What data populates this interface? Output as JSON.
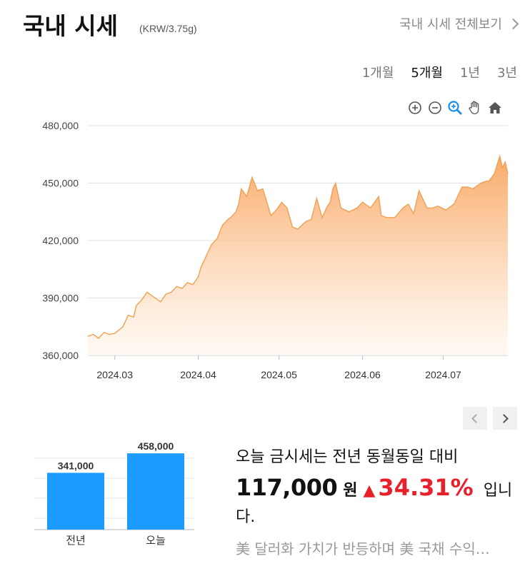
{
  "header": {
    "title": "국내 시세",
    "unit": "(KRW/3.75g)",
    "more_link": "국내 시세 전체보기"
  },
  "period_tabs": [
    {
      "label": "1개월",
      "active": false
    },
    {
      "label": "5개월",
      "active": true
    },
    {
      "label": "1년",
      "active": false
    },
    {
      "label": "3년",
      "active": false
    }
  ],
  "toolbar": [
    "zoom-in-icon",
    "zoom-out-icon",
    "magnify-icon",
    "pan-hand-icon",
    "home-icon"
  ],
  "colors": {
    "line": "#f0a050",
    "fill_top": "#f9a55f",
    "fill_bottom": "#fff6ec",
    "bar": "#1e9bff",
    "up": "#e8202a",
    "grid": "#e2e2e2"
  },
  "chart_data": [
    {
      "type": "area",
      "ylim": [
        360000,
        480000
      ],
      "y_ticks": [
        "480,000",
        "450,000",
        "420,000",
        "390,000",
        "360,000"
      ],
      "x_ticks": [
        "2024.03",
        "2024.04",
        "2024.05",
        "2024.06",
        "2024.07"
      ],
      "x_range": [
        "2024-02-20",
        "2024-07-25"
      ],
      "grid": "horizontal",
      "series": [
        {
          "x": [
            "2024-02-20",
            "2024-02-22",
            "2024-02-24",
            "2024-02-26",
            "2024-02-28",
            "2024-03-01",
            "2024-03-04",
            "2024-03-06",
            "2024-03-08",
            "2024-03-09",
            "2024-03-11",
            "2024-03-13",
            "2024-03-15",
            "2024-03-18",
            "2024-03-20",
            "2024-03-22",
            "2024-03-24",
            "2024-03-26",
            "2024-03-28",
            "2024-03-30",
            "2024-04-01",
            "2024-04-02",
            "2024-04-04",
            "2024-04-06",
            "2024-04-08",
            "2024-04-10",
            "2024-04-12",
            "2024-04-13",
            "2024-04-15",
            "2024-04-16",
            "2024-04-17",
            "2024-04-19",
            "2024-04-20",
            "2024-04-21",
            "2024-04-23",
            "2024-04-25",
            "2024-04-28",
            "2024-04-30",
            "2024-05-02",
            "2024-05-04",
            "2024-05-06",
            "2024-05-08",
            "2024-05-11",
            "2024-05-13",
            "2024-05-15",
            "2024-05-17",
            "2024-05-19",
            "2024-05-20",
            "2024-05-21",
            "2024-05-22",
            "2024-05-24",
            "2024-05-27",
            "2024-05-30",
            "2024-06-01",
            "2024-06-04",
            "2024-06-07",
            "2024-06-08",
            "2024-06-10",
            "2024-06-13",
            "2024-06-16",
            "2024-06-18",
            "2024-06-20",
            "2024-06-22",
            "2024-06-25",
            "2024-06-27",
            "2024-06-29",
            "2024-07-02",
            "2024-07-05",
            "2024-07-08",
            "2024-07-10",
            "2024-07-12",
            "2024-07-15",
            "2024-07-17",
            "2024-07-18",
            "2024-07-20",
            "2024-07-22",
            "2024-07-23",
            "2024-07-24",
            "2024-07-25"
          ],
          "y": [
            370000,
            371000,
            369000,
            372000,
            371000,
            371500,
            375000,
            381000,
            380000,
            386000,
            389000,
            393000,
            391000,
            388000,
            392000,
            393000,
            396000,
            395000,
            398000,
            397000,
            401000,
            406000,
            412000,
            418000,
            421000,
            428000,
            431000,
            432000,
            435000,
            439000,
            447000,
            443000,
            448000,
            453000,
            446000,
            447000,
            433000,
            436000,
            440000,
            437000,
            427000,
            426000,
            430000,
            431000,
            442000,
            432000,
            438000,
            440000,
            447000,
            450000,
            437000,
            435000,
            437000,
            440000,
            437000,
            443000,
            433000,
            432000,
            432000,
            437000,
            439000,
            434000,
            446000,
            437000,
            437000,
            438000,
            436000,
            439000,
            448000,
            448000,
            447000,
            450000,
            451000,
            451000,
            455000,
            464000,
            458000,
            461000,
            455000
          ]
        }
      ]
    },
    {
      "type": "bar",
      "categories": [
        "전년",
        "오늘"
      ],
      "values": [
        341000,
        458000
      ],
      "value_labels": [
        "341,000",
        "458,000"
      ],
      "ylim": [
        0,
        480000
      ]
    }
  ],
  "summary": {
    "line1": "오늘 금시세는 전년 동월동일 대비",
    "diff": "117,000",
    "won": "원",
    "arrow": "▲",
    "pct": "34.31%",
    "ipni": "입니",
    "da": "다."
  },
  "news": {
    "headline": "美 달러화 가치가 반등하며 美 국채 수익…"
  }
}
